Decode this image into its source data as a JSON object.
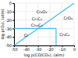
{
  "chart_data": {
    "type": "line",
    "xlabel": "log p(CO/CO₂), (atm)",
    "ylabel": "log p(O₂), (atm)",
    "xlim": [
      -50,
      0
    ],
    "ylim": [
      -50,
      0
    ],
    "xticks": [
      -50,
      -40,
      -30,
      -20,
      -10,
      0
    ],
    "yticks": [
      -50,
      -40,
      -30,
      -20,
      -10,
      0
    ],
    "grid": true,
    "color": "#44bbdd",
    "series": [
      {
        "x": [
          -50,
          0
        ],
        "values": [
          -50,
          0
        ]
      },
      {
        "x": [
          -50,
          -15
        ],
        "values": [
          -30,
          -30
        ]
      },
      {
        "x": [
          -15,
          -15
        ],
        "values": [
          -50,
          -30
        ]
      }
    ],
    "annotations": [
      {
        "text": "Cr₂O₃",
        "x": -27,
        "y": -10
      },
      {
        "text": "CrO₃",
        "x": -5,
        "y": -18
      },
      {
        "text": "Cr₇C₃",
        "x": -31,
        "y": -21
      },
      {
        "text": "Cr₂₃C₆",
        "x": -31,
        "y": -24
      },
      {
        "text": "Cr₃C₂",
        "x": -8,
        "y": -37
      },
      {
        "text": "Cr",
        "x": -40,
        "y": -38
      }
    ]
  }
}
